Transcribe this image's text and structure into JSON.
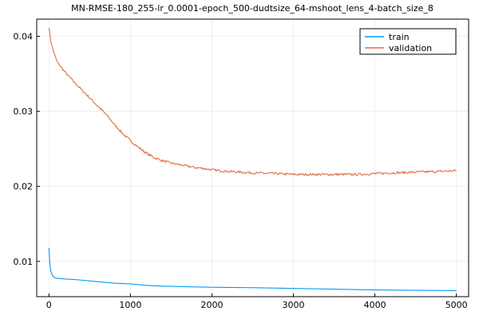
{
  "chart_data": {
    "type": "line",
    "title": "MN-RMSE-180_255-lr_0.0001-epoch_500-dudtsize_64-mshoot_lens_4-batch_size_8",
    "xlabel": "",
    "ylabel": "",
    "xlim": [
      -150,
      5150
    ],
    "ylim": [
      0.0053,
      0.0423
    ],
    "xticks": [
      0,
      1000,
      2000,
      3000,
      4000,
      5000
    ],
    "xtick_labels": [
      "0",
      "1000",
      "2000",
      "3000",
      "4000",
      "5000"
    ],
    "yticks": [
      0.01,
      0.02,
      0.03,
      0.04
    ],
    "ytick_labels": [
      "0.01",
      "0.02",
      "0.03",
      "0.04"
    ],
    "grid": true,
    "legend_position": "top-right",
    "series": [
      {
        "name": "train",
        "color": "#009AFA",
        "x": [
          0,
          10,
          20,
          40,
          60,
          80,
          100,
          150,
          200,
          300,
          400,
          500,
          600,
          700,
          800,
          900,
          1000,
          1200,
          1400,
          1600,
          1800,
          2000,
          2500,
          3000,
          3500,
          4000,
          4500,
          5000
        ],
        "y": [
          0.0118,
          0.0098,
          0.0088,
          0.0082,
          0.0079,
          0.0078,
          0.00775,
          0.0077,
          0.00765,
          0.0076,
          0.0075,
          0.0074,
          0.0073,
          0.0072,
          0.0071,
          0.00705,
          0.007,
          0.0068,
          0.0067,
          0.00665,
          0.0066,
          0.00655,
          0.0065,
          0.0064,
          0.0063,
          0.0062,
          0.00615,
          0.0061
        ],
        "noise": 0
      },
      {
        "name": "validation",
        "color": "#E26F46",
        "x": [
          0,
          20,
          50,
          100,
          200,
          300,
          400,
          500,
          600,
          700,
          800,
          900,
          1000,
          1100,
          1200,
          1300,
          1400,
          1500,
          1600,
          1700,
          1800,
          1900,
          2000,
          2200,
          2500,
          2800,
          3000,
          3200,
          3500,
          3800,
          4000,
          4200,
          4500,
          4800,
          5000
        ],
        "y": [
          0.0413,
          0.0395,
          0.0382,
          0.0366,
          0.0352,
          0.034,
          0.0329,
          0.0318,
          0.0307,
          0.0296,
          0.0283,
          0.0271,
          0.0261,
          0.0252,
          0.0244,
          0.0238,
          0.0234,
          0.0231,
          0.0229,
          0.0227,
          0.0225,
          0.0224,
          0.0222,
          0.022,
          0.0218,
          0.0217,
          0.0216,
          0.0216,
          0.0216,
          0.0216,
          0.0217,
          0.0218,
          0.0219,
          0.022,
          0.0221
        ],
        "noise": 0.00016
      }
    ]
  }
}
